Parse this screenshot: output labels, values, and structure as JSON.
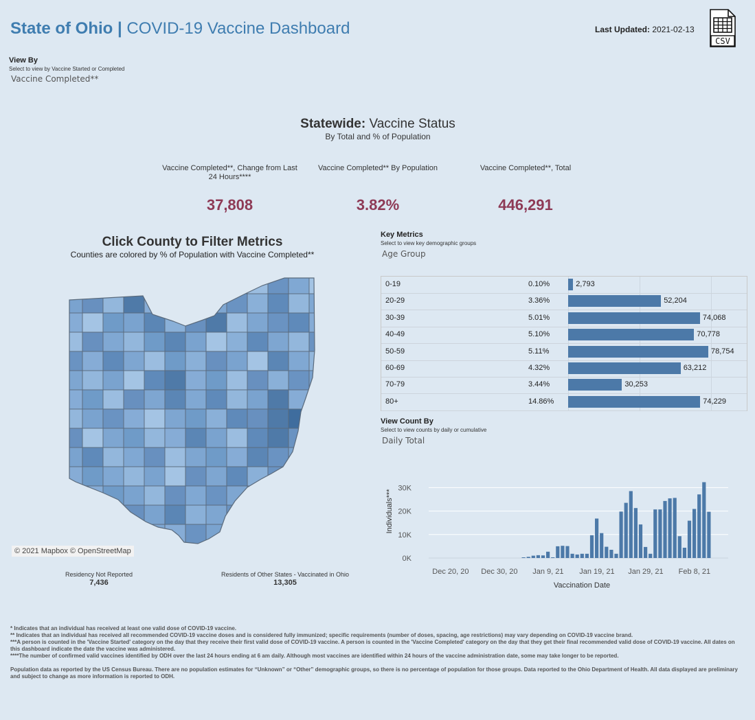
{
  "header": {
    "title_bold": "State of Ohio |",
    "title_rest": " COVID-19 Vaccine Dashboard",
    "updated_label": "Last Updated:",
    "updated_value": " 2021-02-13",
    "csv_label": "CSV"
  },
  "view_by": {
    "title": "View By",
    "subtitle": "Select to view by Vaccine Started or Completed",
    "value": "Vaccine Completed**"
  },
  "statewide": {
    "title_bold": "Statewide:",
    "title_rest": " Vaccine Status",
    "subtitle": "By Total and % of Population"
  },
  "kpis": [
    {
      "label": "Vaccine Completed**, Change from Last 24 Hours****",
      "value": "37,808"
    },
    {
      "label": "Vaccine Completed** By Population",
      "value": "3.82%"
    },
    {
      "label": "Vaccine Completed**, Total",
      "value": "446,291"
    }
  ],
  "map": {
    "title": "Click County to Filter Metrics",
    "subtitle": "Counties are colored by % of Population with Vaccine Completed**",
    "attribution": "© 2021 Mapbox © OpenStreetMap"
  },
  "residency": [
    {
      "label": "Residency Not Reported",
      "value": "7,436"
    },
    {
      "label": "Residents of Other States - Vaccinated in Ohio",
      "value": "13,305"
    }
  ],
  "key_metrics": {
    "title": "Key Metrics",
    "subtitle": "Select to view key demographic groups",
    "value": "Age Group"
  },
  "age_rows": [
    {
      "age": "0-19",
      "pct": "0.10%",
      "count": 2793,
      "label": "2,793"
    },
    {
      "age": "20-29",
      "pct": "3.36%",
      "count": 52204,
      "label": "52,204"
    },
    {
      "age": "30-39",
      "pct": "5.01%",
      "count": 74068,
      "label": "74,068"
    },
    {
      "age": "40-49",
      "pct": "5.10%",
      "count": 70778,
      "label": "70,778"
    },
    {
      "age": "50-59",
      "pct": "5.11%",
      "count": 78754,
      "label": "78,754"
    },
    {
      "age": "60-69",
      "pct": "4.32%",
      "count": 63212,
      "label": "63,212"
    },
    {
      "age": "70-79",
      "pct": "3.44%",
      "count": 30253,
      "label": "30,253"
    },
    {
      "age": "80+",
      "pct": "14.86%",
      "count": 74229,
      "label": "74,229"
    }
  ],
  "view_count": {
    "title": "View Count By",
    "subtitle": "Select to view counts by daily or cumulative",
    "value": "Daily Total"
  },
  "chart_data": {
    "type": "bar",
    "title": "",
    "xlabel": "Vaccination Date",
    "ylabel": "Individuals***",
    "ylim": [
      0,
      32000
    ],
    "y_ticks": [
      {
        "value": 0,
        "label": "0K"
      },
      {
        "value": 10000,
        "label": "10K"
      },
      {
        "value": 20000,
        "label": "20K"
      },
      {
        "value": 30000,
        "label": "30K"
      }
    ],
    "x_tick_labels": [
      {
        "day": 4,
        "label": "Dec 20, 20"
      },
      {
        "day": 14,
        "label": "Dec 30, 20"
      },
      {
        "day": 24,
        "label": "Jan 9, 21"
      },
      {
        "day": 34,
        "label": "Jan 19, 21"
      },
      {
        "day": 44,
        "label": "Jan 29, 21"
      },
      {
        "day": 54,
        "label": "Feb 8, 21"
      }
    ],
    "day0_date": "2020-12-16",
    "day_count": 60,
    "start_day": 19,
    "values": [
      50,
      500,
      1000,
      1200,
      1100,
      2700,
      300,
      5000,
      5200,
      5100,
      1800,
      1500,
      1800,
      1800,
      9700,
      16800,
      10600,
      4800,
      3500,
      1800,
      19800,
      23500,
      28500,
      21300,
      14300,
      4700,
      1800,
      20700,
      20700,
      24300,
      25400,
      25600,
      9300,
      4400,
      15900,
      20900,
      27100,
      32300,
      19700
    ]
  },
  "notes": [
    "* Indicates that an individual has received at least one valid dose of COVID-19 vaccine.",
    "** Indicates that an individual has received all recommended COVID-19 vaccine doses and is considered fully immunized; specific requirements (number of doses, spacing, age restrictions) may vary depending on COVID-19 vaccine brand.",
    "***A person is counted in the 'Vaccine Started' category on the day that they receive their first valid dose of COVID-19 vaccine.  A person is counted in the 'Vaccine Completed' category on the day that they get their final recommended valid dose of COVID-19 vaccine. All dates on this dashboard indicate the date the vaccine was administered.",
    "****The number of confirmed valid vaccines identified by ODH over the last 24 hours ending at 6 am daily. Although most vaccines are identified within 24 hours of the vaccine administration date, some may take longer to be reported.",
    "Population data as reported by the US Census Bureau. There are no population estimates for “Unknown” or “Other” demographic groups, so there is no percentage of population for those groups.  Data reported to the Ohio Department of Health.  All data displayed are preliminary and subject to change as more information is reported to ODH."
  ]
}
